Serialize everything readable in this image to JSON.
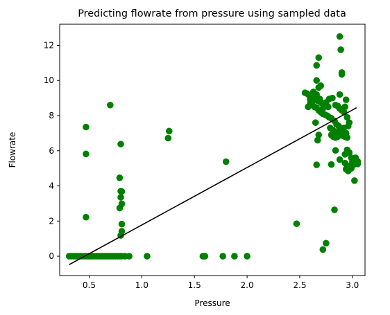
{
  "chart_data": {
    "type": "scatter",
    "title": "Predicting flowrate from pressure using sampled data",
    "xlabel": "Pressure",
    "ylabel": "Flowrate",
    "xlim": [
      0.22,
      3.12
    ],
    "ylim": [
      -1.1,
      13.2
    ],
    "xticks": [
      0.5,
      1.0,
      1.5,
      2.0,
      2.5,
      3.0
    ],
    "xtick_labels": [
      "0.5",
      "1.0",
      "1.5",
      "2.0",
      "2.5",
      "3.0"
    ],
    "yticks": [
      0,
      2,
      4,
      6,
      8,
      10,
      12
    ],
    "ytick_labels": [
      "0",
      "2",
      "4",
      "6",
      "8",
      "10",
      "12"
    ],
    "grid": false,
    "legend": "none",
    "colors": {
      "points": "#008000",
      "fit_line": "#000000",
      "axes": "#000000"
    },
    "series": [
      {
        "kind": "scatter",
        "points": [
          [
            0.31,
            0
          ],
          [
            0.33,
            0
          ],
          [
            0.35,
            0
          ],
          [
            0.37,
            0
          ],
          [
            0.39,
            0
          ],
          [
            0.41,
            0
          ],
          [
            0.43,
            0
          ],
          [
            0.45,
            0
          ],
          [
            0.47,
            0
          ],
          [
            0.49,
            0
          ],
          [
            0.51,
            0
          ],
          [
            0.53,
            0
          ],
          [
            0.55,
            0
          ],
          [
            0.57,
            0
          ],
          [
            0.59,
            0
          ],
          [
            0.61,
            0
          ],
          [
            0.63,
            0
          ],
          [
            0.65,
            0
          ],
          [
            0.67,
            0
          ],
          [
            0.69,
            0
          ],
          [
            0.71,
            0
          ],
          [
            0.73,
            0
          ],
          [
            0.75,
            0
          ],
          [
            0.77,
            0
          ],
          [
            0.79,
            0
          ],
          [
            0.81,
            0
          ],
          [
            0.84,
            0
          ],
          [
            0.88,
            0
          ],
          [
            1.05,
            0
          ],
          [
            1.58,
            0
          ],
          [
            1.59,
            0
          ],
          [
            1.6,
            0
          ],
          [
            1.77,
            0
          ],
          [
            1.88,
            0
          ],
          [
            2.0,
            0
          ],
          [
            0.47,
            7.35
          ],
          [
            0.47,
            5.82
          ],
          [
            0.47,
            2.22
          ],
          [
            0.7,
            8.6
          ],
          [
            0.8,
            6.38
          ],
          [
            0.79,
            4.46
          ],
          [
            0.8,
            3.7
          ],
          [
            0.81,
            3.68
          ],
          [
            0.8,
            3.35
          ],
          [
            0.81,
            2.98
          ],
          [
            0.79,
            2.74
          ],
          [
            0.81,
            1.83
          ],
          [
            0.81,
            1.42
          ],
          [
            0.8,
            1.18
          ],
          [
            1.25,
            6.72
          ],
          [
            1.26,
            7.12
          ],
          [
            1.8,
            5.38
          ],
          [
            2.47,
            1.85
          ],
          [
            2.66,
            5.2
          ],
          [
            2.72,
            0.38
          ],
          [
            2.75,
            0.74
          ],
          [
            2.83,
            2.64
          ],
          [
            2.8,
            5.22
          ],
          [
            2.88,
            5.5
          ],
          [
            2.84,
            6.02
          ],
          [
            2.88,
            12.5
          ],
          [
            2.89,
            11.75
          ],
          [
            2.68,
            11.3
          ],
          [
            2.66,
            10.86
          ],
          [
            2.9,
            10.45
          ],
          [
            2.9,
            10.35
          ],
          [
            2.66,
            10.0
          ],
          [
            2.68,
            9.6
          ],
          [
            2.7,
            9.7
          ],
          [
            2.88,
            9.2
          ],
          [
            2.55,
            9.3
          ],
          [
            2.57,
            9.25
          ],
          [
            2.59,
            9.15
          ],
          [
            2.61,
            9.1
          ],
          [
            2.63,
            9.0
          ],
          [
            2.65,
            8.9
          ],
          [
            2.67,
            8.85
          ],
          [
            2.69,
            8.8
          ],
          [
            2.71,
            8.7
          ],
          [
            2.73,
            8.65
          ],
          [
            2.75,
            8.55
          ],
          [
            2.77,
            8.5
          ],
          [
            2.6,
            8.7
          ],
          [
            2.62,
            8.6
          ],
          [
            2.64,
            8.5
          ],
          [
            2.66,
            8.45
          ],
          [
            2.68,
            8.3
          ],
          [
            2.7,
            8.2
          ],
          [
            2.72,
            8.1
          ],
          [
            2.74,
            8.05
          ],
          [
            2.76,
            8.0
          ],
          [
            2.78,
            7.9
          ],
          [
            2.8,
            7.85
          ],
          [
            2.58,
            8.5
          ],
          [
            2.6,
            8.9
          ],
          [
            2.63,
            9.35
          ],
          [
            2.66,
            9.2
          ],
          [
            2.69,
            8.95
          ],
          [
            2.72,
            8.4
          ],
          [
            2.75,
            8.75
          ],
          [
            2.78,
            8.95
          ],
          [
            2.81,
            9.0
          ],
          [
            2.84,
            8.6
          ],
          [
            2.86,
            8.55
          ],
          [
            2.88,
            8.4
          ],
          [
            2.9,
            8.3
          ],
          [
            2.92,
            8.2
          ],
          [
            2.94,
            8.9
          ],
          [
            2.93,
            8.5
          ],
          [
            2.65,
            7.6
          ],
          [
            2.68,
            6.9
          ],
          [
            2.67,
            6.6
          ],
          [
            2.79,
            7.3
          ],
          [
            2.81,
            7.2
          ],
          [
            2.83,
            7.1
          ],
          [
            2.85,
            7.0
          ],
          [
            2.87,
            6.95
          ],
          [
            2.89,
            6.9
          ],
          [
            2.91,
            6.85
          ],
          [
            2.93,
            6.8
          ],
          [
            2.95,
            6.75
          ],
          [
            2.8,
            6.9
          ],
          [
            2.82,
            6.8
          ],
          [
            2.84,
            6.75
          ],
          [
            2.86,
            6.8
          ],
          [
            2.88,
            7.1
          ],
          [
            2.9,
            7.25
          ],
          [
            2.92,
            7.3
          ],
          [
            2.94,
            7.0
          ],
          [
            2.96,
            7.4
          ],
          [
            2.97,
            7.6
          ],
          [
            2.95,
            7.9
          ],
          [
            2.85,
            7.5
          ],
          [
            2.83,
            7.7
          ],
          [
            2.87,
            7.4
          ],
          [
            2.9,
            7.1
          ],
          [
            2.93,
            5.8
          ],
          [
            2.95,
            6.05
          ],
          [
            2.97,
            5.9
          ],
          [
            2.99,
            5.6
          ],
          [
            3.01,
            5.5
          ],
          [
            3.03,
            5.45
          ],
          [
            3.05,
            5.4
          ],
          [
            2.93,
            5.3
          ],
          [
            2.95,
            5.15
          ],
          [
            2.97,
            5.05
          ],
          [
            2.99,
            5.0
          ],
          [
            3.01,
            5.2
          ],
          [
            3.03,
            5.6
          ],
          [
            3.05,
            5.25
          ],
          [
            2.94,
            4.95
          ],
          [
            2.96,
            4.85
          ],
          [
            3.0,
            5.35
          ],
          [
            3.02,
            4.3
          ]
        ]
      },
      {
        "kind": "line",
        "name": "",
        "points": [
          [
            0.31,
            -0.48
          ],
          [
            3.04,
            8.45
          ]
        ]
      }
    ]
  }
}
